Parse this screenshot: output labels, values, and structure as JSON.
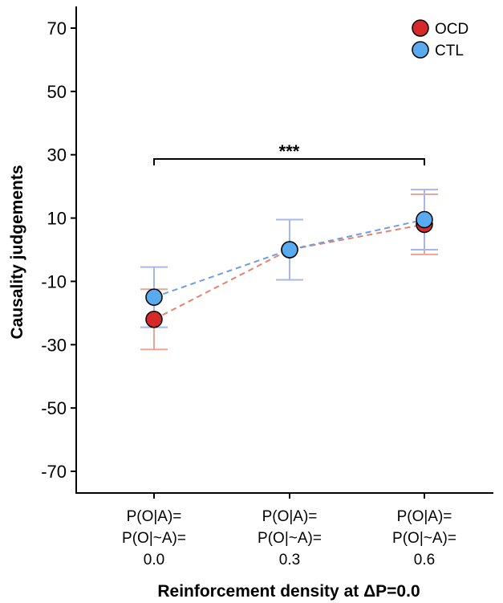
{
  "chart_data": {
    "type": "line",
    "xlabel": "Reinforcement density at ΔP=0.0",
    "ylabel": "Causality judgements",
    "ylim": [
      -80,
      80
    ],
    "yticks": [
      "70",
      "50",
      "30",
      "10",
      "-10",
      "-30",
      "-50",
      "-70"
    ],
    "ytick_values": [
      70,
      50,
      30,
      10,
      -10,
      -30,
      -50,
      -70
    ],
    "categories": [
      [
        "P(O|A)=",
        "P(O|~A)=",
        "0.0"
      ],
      [
        "P(O|A)=",
        "P(O|~A)=",
        "0.3"
      ],
      [
        "P(O|A)=",
        "P(O|~A)=",
        "0.6"
      ]
    ],
    "grid": false,
    "legend_position": "top-right",
    "series": [
      {
        "name": "OCD",
        "color": "#d62a2a",
        "line_color": "#e8826a",
        "error_color": "#eea494",
        "values": [
          -22,
          0,
          8
        ],
        "error": [
          9.5,
          9.5,
          9.5
        ]
      },
      {
        "name": "CTL",
        "color": "#5aaaf0",
        "line_color": "#6e9ee0",
        "error_color": "#a8b6ea",
        "values": [
          -15,
          0,
          9.5
        ],
        "error": [
          9.5,
          9.5,
          9.5
        ]
      }
    ],
    "annotations": [
      {
        "text": "***",
        "from": 0,
        "to": 2,
        "y": 29
      }
    ]
  }
}
